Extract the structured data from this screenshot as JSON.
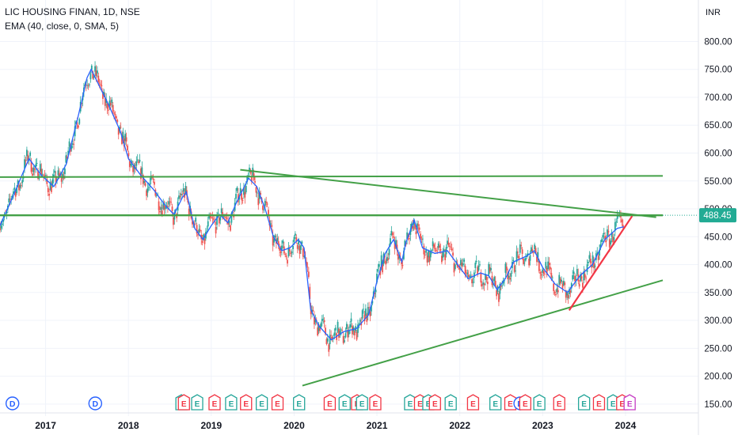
{
  "header": {
    "title": "LIC HOUSING FINAN, 1D, NSE",
    "indicator": "EMA (40, close, 0, SMA, 5)"
  },
  "currency": "INR",
  "colors": {
    "ema": "#2962ff",
    "up": "#26a69a",
    "down": "#ef5350",
    "trendline": "#43a047",
    "support": "#f23645",
    "price_label_bg": "#22ab94",
    "grid": "#f0f3fa",
    "axis_text": "#131722"
  },
  "chart_data": {
    "type": "line",
    "title": "LIC HOUSING FINAN, 1D, NSE",
    "xlabel": "",
    "ylabel": "",
    "x_ticks": [
      "2017",
      "2018",
      "2019",
      "2020",
      "2021",
      "2022",
      "2023",
      "2024"
    ],
    "y_ticks": [
      "800.00",
      "750.00",
      "700.00",
      "650.00",
      "600.00",
      "550.00",
      "500.00",
      "450.00",
      "400.00",
      "350.00",
      "300.00",
      "250.00",
      "200.00",
      "150.00"
    ],
    "ylim": [
      137,
      812
    ],
    "xlim": [
      2016.45,
      2024.88
    ],
    "grid": true,
    "last_price": {
      "value": 488.45,
      "label": "488.45"
    },
    "series": [
      {
        "name": "EMA (40, close, 0, SMA, 5)",
        "points": [
          [
            2016.45,
            470
          ],
          [
            2016.6,
            520
          ],
          [
            2016.8,
            590
          ],
          [
            2016.95,
            560
          ],
          [
            2017.1,
            540
          ],
          [
            2017.25,
            580
          ],
          [
            2017.4,
            670
          ],
          [
            2017.5,
            735
          ],
          [
            2017.55,
            750
          ],
          [
            2017.65,
            720
          ],
          [
            2017.75,
            690
          ],
          [
            2017.9,
            640
          ],
          [
            2018.0,
            590
          ],
          [
            2018.15,
            560
          ],
          [
            2018.3,
            535
          ],
          [
            2018.45,
            505
          ],
          [
            2018.55,
            490
          ],
          [
            2018.65,
            520
          ],
          [
            2018.7,
            530
          ],
          [
            2018.8,
            465
          ],
          [
            2018.9,
            445
          ],
          [
            2019.0,
            470
          ],
          [
            2019.1,
            490
          ],
          [
            2019.2,
            475
          ],
          [
            2019.3,
            510
          ],
          [
            2019.45,
            555
          ],
          [
            2019.55,
            540
          ],
          [
            2019.65,
            500
          ],
          [
            2019.75,
            450
          ],
          [
            2019.85,
            425
          ],
          [
            2019.95,
            430
          ],
          [
            2020.05,
            445
          ],
          [
            2020.12,
            430
          ],
          [
            2020.2,
            320
          ],
          [
            2020.3,
            290
          ],
          [
            2020.45,
            265
          ],
          [
            2020.6,
            280
          ],
          [
            2020.75,
            285
          ],
          [
            2020.9,
            310
          ],
          [
            2021.0,
            370
          ],
          [
            2021.1,
            420
          ],
          [
            2021.2,
            445
          ],
          [
            2021.3,
            405
          ],
          [
            2021.35,
            440
          ],
          [
            2021.45,
            480
          ],
          [
            2021.55,
            430
          ],
          [
            2021.7,
            420
          ],
          [
            2021.85,
            425
          ],
          [
            2022.0,
            395
          ],
          [
            2022.1,
            375
          ],
          [
            2022.25,
            385
          ],
          [
            2022.35,
            380
          ],
          [
            2022.45,
            355
          ],
          [
            2022.55,
            375
          ],
          [
            2022.65,
            405
          ],
          [
            2022.8,
            415
          ],
          [
            2022.9,
            425
          ],
          [
            2023.0,
            395
          ],
          [
            2023.15,
            365
          ],
          [
            2023.3,
            350
          ],
          [
            2023.45,
            380
          ],
          [
            2023.6,
            400
          ],
          [
            2023.75,
            445
          ],
          [
            2023.9,
            465
          ],
          [
            2023.98,
            468
          ]
        ]
      }
    ],
    "trendlines": [
      {
        "kind": "horizontal",
        "points": [
          [
            2016.45,
            557
          ],
          [
            2024.45,
            559
          ]
        ]
      },
      {
        "kind": "horizontal",
        "points": [
          [
            2016.45,
            488.45
          ],
          [
            2024.45,
            488.45
          ]
        ]
      },
      {
        "kind": "descending",
        "points": [
          [
            2019.35,
            570
          ],
          [
            2024.37,
            485
          ]
        ]
      },
      {
        "kind": "ascending",
        "points": [
          [
            2020.1,
            183
          ],
          [
            2024.45,
            372
          ]
        ]
      },
      {
        "kind": "ascending-support",
        "points": [
          [
            2023.32,
            318
          ],
          [
            2024.08,
            487
          ]
        ]
      }
    ],
    "events": [
      {
        "type": "D",
        "x": 2016.6
      },
      {
        "type": "D",
        "x": 2017.6
      },
      {
        "type": "E",
        "x": 2018.64
      },
      {
        "type": "E",
        "x": 2018.67
      },
      {
        "type": "E",
        "x": 2018.83
      },
      {
        "type": "E",
        "x": 2019.04
      },
      {
        "type": "E",
        "x": 2019.24
      },
      {
        "type": "E",
        "x": 2019.42
      },
      {
        "type": "E",
        "x": 2019.61
      },
      {
        "type": "E",
        "x": 2019.8
      },
      {
        "type": "E",
        "x": 2020.06
      },
      {
        "type": "E",
        "x": 2020.43
      },
      {
        "type": "E",
        "x": 2020.61
      },
      {
        "type": "E",
        "x": 2020.76
      },
      {
        "type": "E",
        "x": 2020.82
      },
      {
        "type": "E",
        "x": 2020.98
      },
      {
        "type": "E",
        "x": 2021.4
      },
      {
        "type": "E",
        "x": 2021.52
      },
      {
        "type": "E",
        "x": 2021.62
      },
      {
        "type": "E",
        "x": 2021.7
      },
      {
        "type": "E",
        "x": 2021.89
      },
      {
        "type": "E",
        "x": 2022.16
      },
      {
        "type": "E",
        "x": 2022.43
      },
      {
        "type": "E",
        "x": 2022.61
      },
      {
        "type": "D",
        "x": 2022.73
      },
      {
        "type": "E",
        "x": 2022.79
      },
      {
        "type": "E",
        "x": 2022.96
      },
      {
        "type": "E",
        "x": 2023.2
      },
      {
        "type": "E",
        "x": 2023.5
      },
      {
        "type": "E",
        "x": 2023.68
      },
      {
        "type": "E",
        "x": 2023.85
      },
      {
        "type": "E",
        "x": 2023.96
      },
      {
        "type": "E",
        "x": 2024.05
      }
    ]
  }
}
